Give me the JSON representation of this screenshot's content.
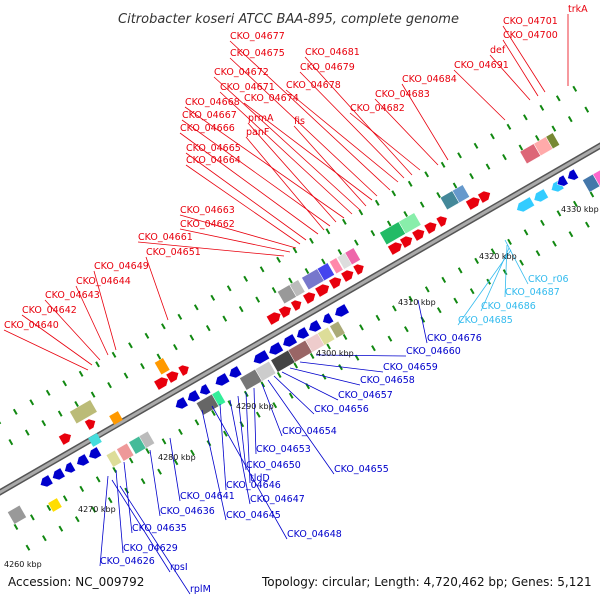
{
  "title": "Citrobacter koseri ATCC BAA-895, complete genome",
  "accession": "Accession: NC_009792",
  "summary": "Topology: circular; Length: 4,720,462 bp; Genes: 5,121",
  "colors": {
    "forward": "#e8000d",
    "reverse": "#0000cc",
    "rna": "#33bbdd",
    "backbone": "#888888",
    "tick": "#118811"
  },
  "ticks": [
    "4260 kbp",
    "4270 kbp",
    "4280 kbp",
    "4290 kbp",
    "4300 kbp",
    "4310 kbp",
    "4320 kbp",
    "4330 kbp"
  ],
  "labels_top": [
    "trkA",
    "CKO_04701",
    "CKO_04700",
    "def",
    "CKO_04691",
    "CKO_04684",
    "CKO_04683",
    "CKO_04682",
    "CKO_04681",
    "CKO_04679",
    "CKO_04678",
    "CKO_04677",
    "CKO_04675",
    "CKO_04674",
    "fis",
    "CKO_04672",
    "CKO_04671",
    "CKO_04668",
    "prmA",
    "CKO_04667",
    "panF",
    "CKO_04666",
    "CKO_04665",
    "CKO_04664",
    "CKO_04663",
    "CKO_04662",
    "CKO_04661",
    "CKO_04651",
    "CKO_04649",
    "CKO_04644",
    "CKO_04643",
    "CKO_04642",
    "CKO_04640"
  ],
  "labels_rna": [
    "CKO_r06",
    "CKO_04687",
    "CKO_04686",
    "CKO_04685"
  ],
  "labels_bottom": [
    "CKO_04676",
    "CKO_04660",
    "CKO_04659",
    "CKO_04658",
    "CKO_04657",
    "CKO_04656",
    "CKO_04655",
    "CKO_04654",
    "CKO_04653",
    "tldD",
    "CKO_04650",
    "CKO_04647",
    "CKO_04646",
    "CKO_04648",
    "CKO_04645",
    "CKO_04641",
    "CKO_04636",
    "CKO_04635",
    "CKO_04629",
    "CKO_04626",
    "rpsI",
    "rplM"
  ]
}
